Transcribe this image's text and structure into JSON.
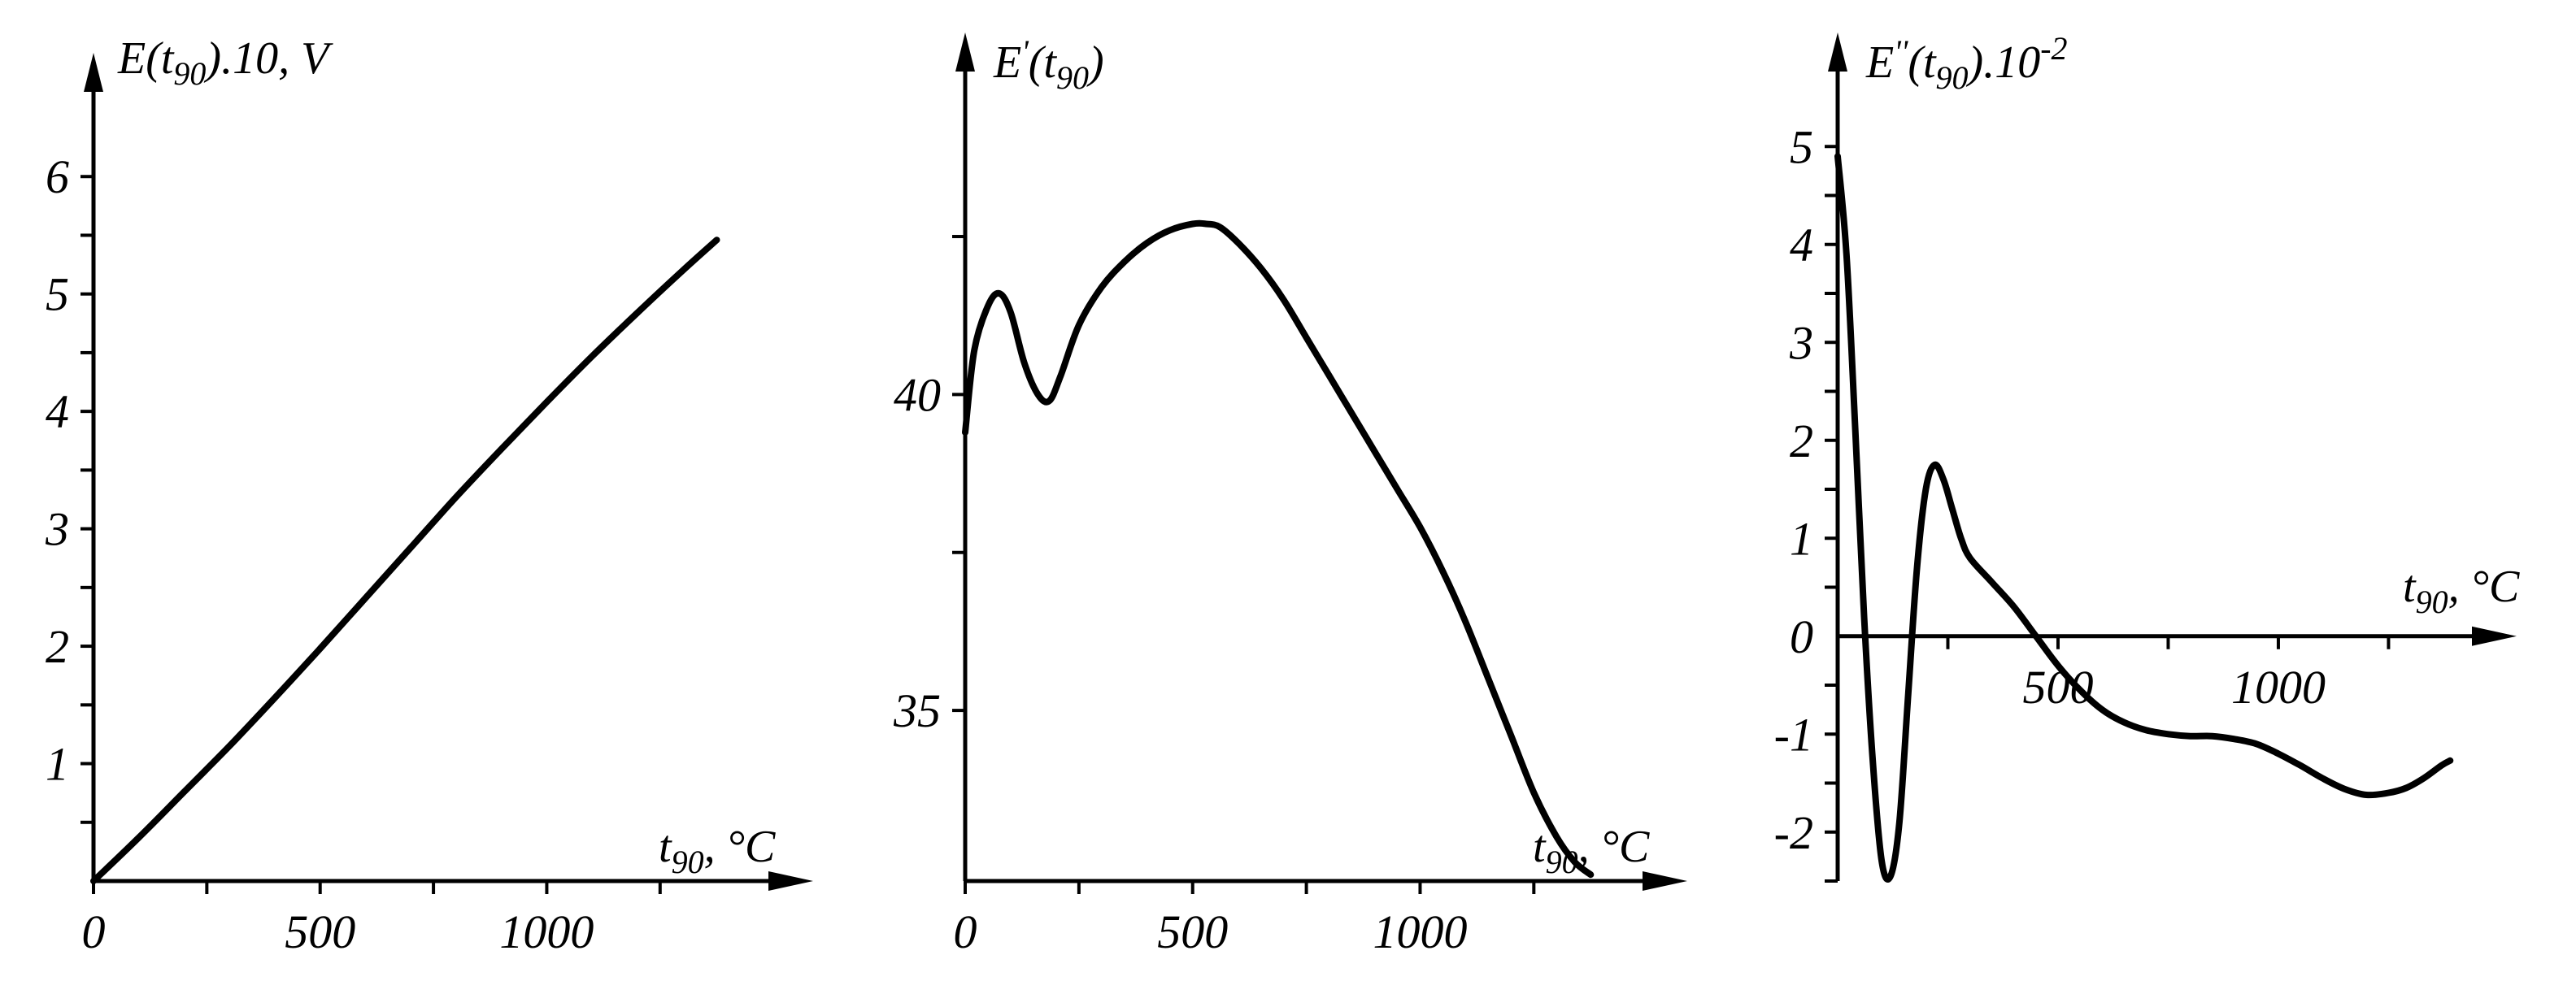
{
  "chart_data": [
    {
      "type": "line",
      "title": "",
      "ylabel": "E(t90).10, V",
      "ylabel_parts": {
        "base": "E(t",
        "sub": "90",
        "tail": ").10, V"
      },
      "xlabel": "t90, °C",
      "xlabel_parts": {
        "base": "t",
        "sub": "90",
        "tail": ", °C"
      },
      "xlim": [
        0,
        1480
      ],
      "ylim": [
        0,
        6.5
      ],
      "x_ticks": [
        0,
        250,
        500,
        750,
        1000,
        1250
      ],
      "x_tick_labels": [
        {
          "v": 0,
          "t": "0"
        },
        {
          "v": 500,
          "t": "500"
        },
        {
          "v": 1000,
          "t": "1000"
        }
      ],
      "y_ticks": [
        0.5,
        1,
        1.5,
        2,
        2.5,
        3,
        3.5,
        4,
        4.5,
        5,
        5.5,
        6
      ],
      "y_tick_labels": [
        {
          "v": 1,
          "t": "1"
        },
        {
          "v": 2,
          "t": "2"
        },
        {
          "v": 3,
          "t": "3"
        },
        {
          "v": 4,
          "t": "4"
        },
        {
          "v": 5,
          "t": "5"
        },
        {
          "v": 6,
          "t": "6"
        }
      ],
      "grid": false,
      "series": [
        {
          "x": [
            0,
            100,
            200,
            300,
            400,
            500,
            600,
            700,
            800,
            900,
            1000,
            1100,
            1200,
            1300,
            1375
          ],
          "y": [
            0.0,
            0.37,
            0.76,
            1.15,
            1.56,
            1.98,
            2.41,
            2.84,
            3.27,
            3.68,
            4.08,
            4.47,
            4.84,
            5.2,
            5.46
          ]
        }
      ]
    },
    {
      "type": "line",
      "title": "",
      "ylabel": "E'(t90)",
      "ylabel_parts": {
        "base": "E",
        "sup": "'",
        "mid": "(t",
        "sub": "90",
        "tail": ")"
      },
      "xlabel": "t90, °C",
      "xlabel_parts": {
        "base": "t",
        "sub": "90",
        "tail": ", °C"
      },
      "xlim": [
        0,
        1480
      ],
      "ylim": [
        32.3,
        44.7
      ],
      "x_ticks": [
        0,
        250,
        500,
        750,
        1000,
        1250
      ],
      "x_tick_labels": [
        {
          "v": 0,
          "t": "0"
        },
        {
          "v": 500,
          "t": "500"
        },
        {
          "v": 1000,
          "t": "1000"
        }
      ],
      "y_ticks": [
        35,
        37.5,
        40,
        42.5
      ],
      "y_tick_labels": [
        {
          "v": 35,
          "t": "35"
        },
        {
          "v": 40,
          "t": "40"
        }
      ],
      "grid": false,
      "series": [
        {
          "x": [
            0,
            20,
            50,
            75,
            100,
            130,
            160,
            185,
            210,
            250,
            300,
            350,
            400,
            450,
            500,
            530,
            560,
            600,
            650,
            700,
            750,
            800,
            850,
            900,
            950,
            1000,
            1050,
            1100,
            1150,
            1200,
            1250,
            1300,
            1340,
            1375
          ],
          "y": [
            39.4,
            40.7,
            41.4,
            41.6,
            41.3,
            40.5,
            40.0,
            39.9,
            40.3,
            41.1,
            41.7,
            42.1,
            42.4,
            42.6,
            42.7,
            42.7,
            42.65,
            42.4,
            42.0,
            41.5,
            40.9,
            40.3,
            39.7,
            39.1,
            38.5,
            37.9,
            37.2,
            36.4,
            35.5,
            34.6,
            33.7,
            33.0,
            32.6,
            32.4
          ]
        }
      ]
    },
    {
      "type": "line",
      "title": "",
      "ylabel": "E''(t90).10^-2",
      "ylabel_parts": {
        "base": "E",
        "sup": "''",
        "mid": "(t",
        "sub": "90",
        "tail": ").10",
        "exp": "-2"
      },
      "xlabel": "t90, °C",
      "xlabel_parts": {
        "base": "t",
        "sub": "90",
        "tail": ", °C"
      },
      "xlim": [
        0,
        1430
      ],
      "ylim": [
        -2.5,
        5.5
      ],
      "x_ticks": [
        250,
        500,
        750,
        1000,
        1250
      ],
      "x_tick_labels": [
        {
          "v": 500,
          "t": "500"
        },
        {
          "v": 1000,
          "t": "1000"
        }
      ],
      "y_ticks": [
        -2.5,
        -2,
        -1.5,
        -1,
        -0.5,
        0.5,
        1,
        1.5,
        2,
        2.5,
        3,
        3.5,
        4,
        4.5,
        5
      ],
      "y_tick_labels": [
        {
          "v": -2,
          "t": "-2"
        },
        {
          "v": -1,
          "t": "-1"
        },
        {
          "v": 0,
          "t": "0"
        },
        {
          "v": 1,
          "t": "1"
        },
        {
          "v": 2,
          "t": "2"
        },
        {
          "v": 3,
          "t": "3"
        },
        {
          "v": 4,
          "t": "4"
        },
        {
          "v": 5,
          "t": "5"
        }
      ],
      "grid": false,
      "series": [
        {
          "x": [
            0,
            20,
            40,
            60,
            80,
            100,
            120,
            140,
            160,
            180,
            200,
            220,
            240,
            260,
            280,
            300,
            350,
            400,
            450,
            500,
            550,
            600,
            650,
            700,
            750,
            800,
            850,
            900,
            950,
            1000,
            1050,
            1100,
            1150,
            1200,
            1250,
            1290,
            1330,
            1370,
            1390
          ],
          "y": [
            4.9,
            3.9,
            2.1,
            0.2,
            -1.3,
            -2.3,
            -2.45,
            -1.9,
            -0.6,
            0.7,
            1.5,
            1.75,
            1.6,
            1.3,
            1.0,
            0.8,
            0.55,
            0.3,
            0.0,
            -0.3,
            -0.55,
            -0.75,
            -0.88,
            -0.96,
            -1.0,
            -1.02,
            -1.02,
            -1.05,
            -1.1,
            -1.2,
            -1.32,
            -1.45,
            -1.56,
            -1.62,
            -1.6,
            -1.55,
            -1.45,
            -1.32,
            -1.27
          ]
        }
      ]
    }
  ]
}
